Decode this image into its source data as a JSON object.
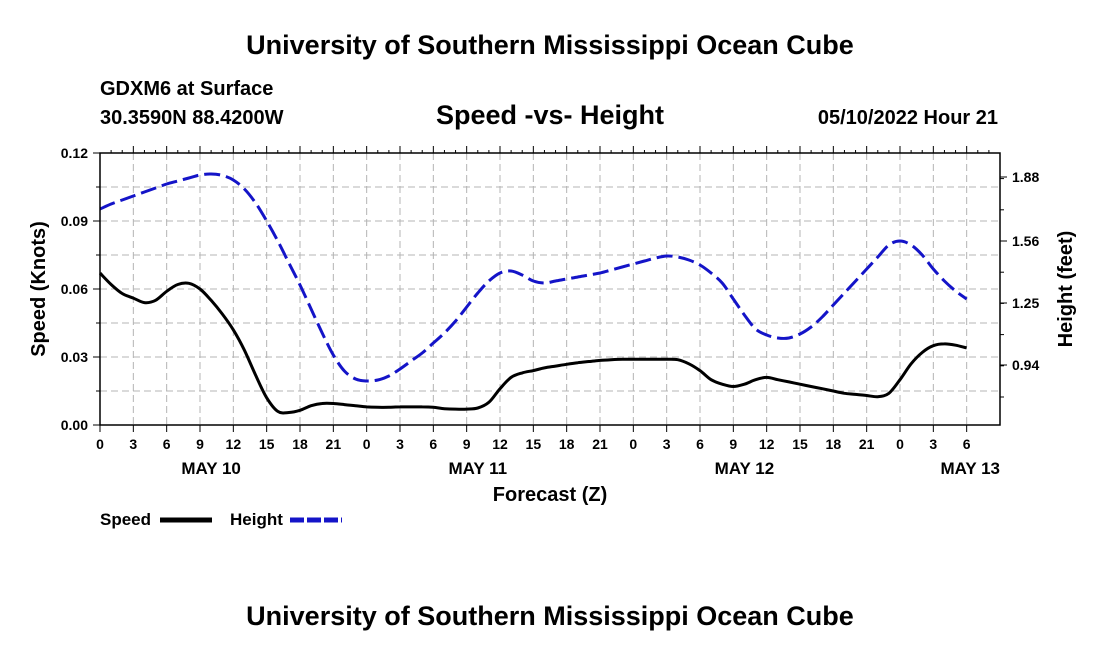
{
  "title": "University of Southern Mississippi Ocean Cube",
  "footer_title": "University of Southern Mississippi Ocean Cube",
  "station": "GDXM6 at Surface",
  "coords": "30.3590N  88.4200W",
  "datetime": "05/10/2022 Hour 21",
  "colors": {
    "speed": "#000000",
    "height": "#1414c8",
    "grid": "#b4b4b4"
  },
  "chart_data": {
    "type": "line",
    "title": "Speed -vs- Height",
    "xlabel": "Forecast (Z)",
    "ylabel_left": "Speed (Knots)",
    "ylabel_right": "Height (feet)",
    "x_range": [
      0,
      81
    ],
    "x_ticks": [
      {
        "t": 0,
        "label": "0"
      },
      {
        "t": 3,
        "label": "3"
      },
      {
        "t": 6,
        "label": "6"
      },
      {
        "t": 9,
        "label": "9"
      },
      {
        "t": 12,
        "label": "12"
      },
      {
        "t": 15,
        "label": "15"
      },
      {
        "t": 18,
        "label": "18"
      },
      {
        "t": 21,
        "label": "21"
      },
      {
        "t": 24,
        "label": "0"
      },
      {
        "t": 27,
        "label": "3"
      },
      {
        "t": 30,
        "label": "6"
      },
      {
        "t": 33,
        "label": "9"
      },
      {
        "t": 36,
        "label": "12"
      },
      {
        "t": 39,
        "label": "15"
      },
      {
        "t": 42,
        "label": "18"
      },
      {
        "t": 45,
        "label": "21"
      },
      {
        "t": 48,
        "label": "0"
      },
      {
        "t": 51,
        "label": "3"
      },
      {
        "t": 54,
        "label": "6"
      },
      {
        "t": 57,
        "label": "9"
      },
      {
        "t": 60,
        "label": "12"
      },
      {
        "t": 63,
        "label": "15"
      },
      {
        "t": 66,
        "label": "18"
      },
      {
        "t": 69,
        "label": "21"
      },
      {
        "t": 72,
        "label": "0"
      },
      {
        "t": 75,
        "label": "3"
      },
      {
        "t": 78,
        "label": "6"
      }
    ],
    "day_labels": [
      {
        "t": 10,
        "label": "MAY 10"
      },
      {
        "t": 34,
        "label": "MAY 11"
      },
      {
        "t": 58,
        "label": "MAY 12"
      },
      {
        "t": 78,
        "label": "MAY 13",
        "anchor": "end"
      }
    ],
    "ylim_left": [
      0,
      0.12
    ],
    "yticks_left": [
      "0.00",
      "0.03",
      "0.06",
      "0.09",
      "0.12"
    ],
    "ylim_right": [
      0.64,
      2.0
    ],
    "yticks_right": [
      "0.94",
      "1.25",
      "1.56",
      "1.88"
    ],
    "series": [
      {
        "name": "Speed",
        "axis": "left",
        "style": "solid",
        "x": [
          0,
          1,
          2,
          3,
          4,
          5,
          6,
          7,
          8,
          9,
          10,
          11,
          12,
          13,
          14,
          15,
          16,
          17,
          18,
          19,
          20,
          21,
          22,
          23,
          24,
          25,
          26,
          27,
          28,
          29,
          30,
          31,
          32,
          33,
          34,
          35,
          36,
          37,
          38,
          39,
          40,
          41,
          42,
          43,
          44,
          45,
          46,
          47,
          48,
          49,
          50,
          51,
          52,
          53,
          54,
          55,
          56,
          57,
          58,
          59,
          60,
          61,
          62,
          63,
          64,
          65,
          66,
          67,
          68,
          69,
          70,
          71,
          72,
          73,
          74,
          75,
          76,
          77,
          78
        ],
        "values": [
          0.067,
          0.062,
          0.058,
          0.056,
          0.054,
          0.055,
          0.059,
          0.062,
          0.0625,
          0.06,
          0.055,
          0.049,
          0.042,
          0.033,
          0.022,
          0.012,
          0.006,
          0.0055,
          0.0065,
          0.0085,
          0.0095,
          0.0095,
          0.009,
          0.0085,
          0.008,
          0.0078,
          0.0078,
          0.008,
          0.008,
          0.008,
          0.0078,
          0.0072,
          0.007,
          0.007,
          0.0075,
          0.01,
          0.016,
          0.021,
          0.023,
          0.024,
          0.0252,
          0.026,
          0.0268,
          0.0275,
          0.028,
          0.0285,
          0.0288,
          0.029,
          0.029,
          0.029,
          0.029,
          0.029,
          0.0288,
          0.027,
          0.024,
          0.02,
          0.018,
          0.017,
          0.018,
          0.02,
          0.021,
          0.02,
          0.019,
          0.018,
          0.017,
          0.016,
          0.015,
          0.014,
          0.0135,
          0.013,
          0.0125,
          0.014,
          0.02,
          0.027,
          0.032,
          0.035,
          0.0358,
          0.0352,
          0.034
        ]
      },
      {
        "name": "Height",
        "axis": "right",
        "style": "dashed",
        "x": [
          0,
          1,
          2,
          3,
          4,
          5,
          6,
          7,
          8,
          9,
          10,
          11,
          12,
          13,
          14,
          15,
          16,
          17,
          18,
          19,
          20,
          21,
          22,
          23,
          24,
          25,
          26,
          27,
          28,
          29,
          30,
          31,
          32,
          33,
          34,
          35,
          36,
          37,
          38,
          39,
          40,
          41,
          42,
          43,
          44,
          45,
          46,
          47,
          48,
          49,
          50,
          51,
          52,
          53,
          54,
          55,
          56,
          57,
          58,
          59,
          60,
          61,
          62,
          63,
          64,
          65,
          66,
          67,
          68,
          69,
          70,
          71,
          72,
          73,
          74,
          75,
          76,
          77,
          78
        ],
        "values": [
          1.72,
          1.745,
          1.765,
          1.785,
          1.805,
          1.825,
          1.845,
          1.86,
          1.875,
          1.89,
          1.895,
          1.888,
          1.865,
          1.82,
          1.75,
          1.66,
          1.56,
          1.45,
          1.34,
          1.22,
          1.1,
          0.99,
          0.91,
          0.87,
          0.86,
          0.865,
          0.885,
          0.92,
          0.96,
          1.0,
          1.05,
          1.1,
          1.16,
          1.23,
          1.3,
          1.36,
          1.4,
          1.41,
          1.39,
          1.36,
          1.35,
          1.36,
          1.37,
          1.38,
          1.39,
          1.4,
          1.415,
          1.43,
          1.445,
          1.46,
          1.475,
          1.485,
          1.48,
          1.465,
          1.44,
          1.4,
          1.35,
          1.27,
          1.19,
          1.12,
          1.09,
          1.075,
          1.075,
          1.095,
          1.13,
          1.18,
          1.24,
          1.3,
          1.36,
          1.42,
          1.48,
          1.54,
          1.56,
          1.54,
          1.49,
          1.42,
          1.36,
          1.31,
          1.27
        ]
      }
    ],
    "legend": [
      {
        "name": "Speed",
        "style": "solid"
      },
      {
        "name": "Height",
        "style": "dashed"
      }
    ],
    "grid": true
  }
}
